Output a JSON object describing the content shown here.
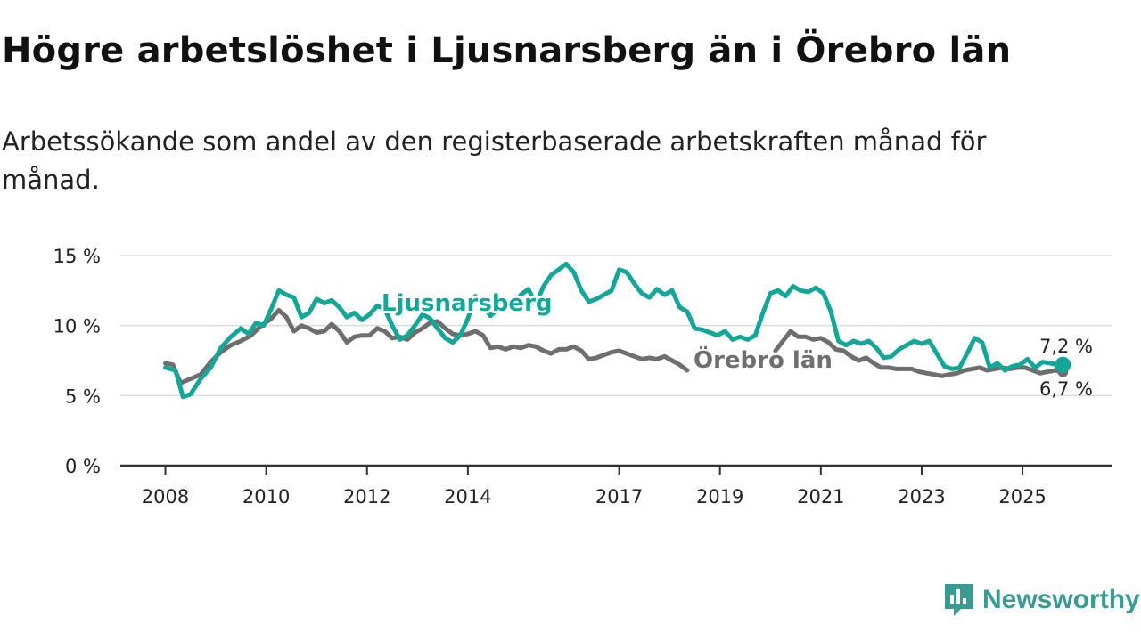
{
  "brand": {
    "name": "Newsworthy",
    "icon": "newsworthy-logo-icon",
    "color": "#3a9c91"
  },
  "chart_data": {
    "type": "line",
    "title": "Högre arbetslöshet i Ljusnarsberg än i Örebro län",
    "subtitle": "Arbetssökande som andel av den registerbaserade arbetskraften månad för månad.",
    "xlabel": "",
    "ylabel": "",
    "xlim": [
      2008,
      2025.9
    ],
    "ylim": [
      0,
      15
    ],
    "x_ticks": [
      2008,
      2010,
      2012,
      2014,
      2017,
      2019,
      2021,
      2023,
      2025
    ],
    "y_ticks": [
      {
        "value": 0,
        "label": "0 %"
      },
      {
        "value": 5,
        "label": "5 %"
      },
      {
        "value": 10,
        "label": "10 %"
      },
      {
        "value": 15,
        "label": "15 %"
      }
    ],
    "grid": true,
    "series": [
      {
        "name": "Ljusnarsberg",
        "color": "#14a697",
        "end_label": "7,2 %",
        "points": [
          [
            2008.0,
            7.0
          ],
          [
            2008.2,
            6.8
          ],
          [
            2008.35,
            4.9
          ],
          [
            2008.5,
            5.1
          ],
          [
            2008.7,
            6.2
          ],
          [
            2008.9,
            7.0
          ],
          [
            2009.1,
            8.4
          ],
          [
            2009.3,
            9.2
          ],
          [
            2009.5,
            9.8
          ],
          [
            2009.65,
            9.4
          ],
          [
            2009.8,
            10.2
          ],
          [
            2009.95,
            10.0
          ],
          [
            2010.1,
            11.2
          ],
          [
            2010.25,
            12.5
          ],
          [
            2010.4,
            12.2
          ],
          [
            2010.55,
            12.0
          ],
          [
            2010.7,
            10.6
          ],
          [
            2010.85,
            10.9
          ],
          [
            2011.0,
            11.9
          ],
          [
            2011.15,
            11.6
          ],
          [
            2011.3,
            11.8
          ],
          [
            2011.45,
            11.3
          ],
          [
            2011.6,
            10.6
          ],
          [
            2011.75,
            10.9
          ],
          [
            2011.9,
            10.4
          ],
          [
            2012.05,
            10.8
          ],
          [
            2012.2,
            11.4
          ],
          [
            2012.35,
            11.2
          ],
          [
            2012.5,
            10.0
          ],
          [
            2012.65,
            9.0
          ],
          [
            2012.8,
            9.3
          ],
          [
            2012.95,
            10.0
          ],
          [
            2013.1,
            10.8
          ],
          [
            2013.25,
            10.5
          ],
          [
            2013.4,
            9.8
          ],
          [
            2013.55,
            9.1
          ],
          [
            2013.7,
            8.8
          ],
          [
            2013.85,
            9.3
          ],
          [
            2014.0,
            10.5
          ],
          [
            2014.15,
            12.1
          ],
          [
            2014.3,
            11.4
          ],
          [
            2014.45,
            10.7
          ],
          [
            2014.6,
            11.2
          ],
          [
            2014.75,
            11.6
          ],
          [
            2014.9,
            11.5
          ],
          [
            2015.05,
            12.2
          ],
          [
            2015.2,
            12.6
          ],
          [
            2015.35,
            11.5
          ],
          [
            2015.5,
            12.8
          ],
          [
            2015.65,
            13.6
          ],
          [
            2015.8,
            14.0
          ],
          [
            2015.95,
            14.4
          ],
          [
            2016.1,
            13.8
          ],
          [
            2016.25,
            12.5
          ],
          [
            2016.4,
            11.7
          ],
          [
            2016.55,
            11.9
          ],
          [
            2016.7,
            12.2
          ],
          [
            2016.85,
            12.5
          ],
          [
            2017.0,
            14.0
          ],
          [
            2017.15,
            13.8
          ],
          [
            2017.3,
            13.0
          ],
          [
            2017.45,
            12.3
          ],
          [
            2017.6,
            12.0
          ],
          [
            2017.75,
            12.6
          ],
          [
            2017.9,
            12.2
          ],
          [
            2018.05,
            12.5
          ],
          [
            2018.2,
            11.3
          ],
          [
            2018.35,
            11.0
          ],
          [
            2018.5,
            9.8
          ],
          [
            2018.65,
            9.7
          ],
          [
            2018.8,
            9.5
          ],
          [
            2018.95,
            9.3
          ],
          [
            2019.1,
            9.6
          ],
          [
            2019.25,
            9.0
          ],
          [
            2019.4,
            9.2
          ],
          [
            2019.55,
            9.0
          ],
          [
            2019.7,
            9.3
          ],
          [
            2019.85,
            10.9
          ],
          [
            2020.0,
            12.3
          ],
          [
            2020.15,
            12.5
          ],
          [
            2020.3,
            12.1
          ],
          [
            2020.45,
            12.8
          ],
          [
            2020.6,
            12.5
          ],
          [
            2020.75,
            12.4
          ],
          [
            2020.9,
            12.7
          ],
          [
            2021.05,
            12.3
          ],
          [
            2021.2,
            11.0
          ],
          [
            2021.35,
            8.9
          ],
          [
            2021.5,
            8.6
          ],
          [
            2021.65,
            8.9
          ],
          [
            2021.8,
            8.7
          ],
          [
            2021.95,
            8.9
          ],
          [
            2022.1,
            8.4
          ],
          [
            2022.25,
            7.7
          ],
          [
            2022.4,
            7.8
          ],
          [
            2022.55,
            8.3
          ],
          [
            2022.7,
            8.6
          ],
          [
            2022.85,
            8.9
          ],
          [
            2023.0,
            8.7
          ],
          [
            2023.15,
            8.9
          ],
          [
            2023.3,
            8.0
          ],
          [
            2023.45,
            7.1
          ],
          [
            2023.6,
            6.9
          ],
          [
            2023.75,
            7.0
          ],
          [
            2023.9,
            8.0
          ],
          [
            2024.05,
            9.1
          ],
          [
            2024.2,
            8.8
          ],
          [
            2024.35,
            7.0
          ],
          [
            2024.5,
            7.3
          ],
          [
            2024.65,
            6.8
          ],
          [
            2024.8,
            7.1
          ],
          [
            2024.95,
            7.2
          ],
          [
            2025.1,
            7.6
          ],
          [
            2025.25,
            7.0
          ],
          [
            2025.4,
            7.4
          ],
          [
            2025.55,
            7.3
          ],
          [
            2025.7,
            7.2
          ],
          [
            2025.8,
            7.2
          ]
        ]
      },
      {
        "name": "Örebro län",
        "color": "#6e6e6e",
        "end_label": "6,7 %",
        "points": [
          [
            2008.0,
            7.3
          ],
          [
            2008.15,
            7.2
          ],
          [
            2008.3,
            5.9
          ],
          [
            2008.5,
            6.2
          ],
          [
            2008.7,
            6.5
          ],
          [
            2008.9,
            7.4
          ],
          [
            2009.1,
            8.1
          ],
          [
            2009.3,
            8.6
          ],
          [
            2009.5,
            8.9
          ],
          [
            2009.7,
            9.3
          ],
          [
            2009.9,
            10.0
          ],
          [
            2010.1,
            10.5
          ],
          [
            2010.25,
            11.1
          ],
          [
            2010.4,
            10.6
          ],
          [
            2010.55,
            9.6
          ],
          [
            2010.7,
            10.0
          ],
          [
            2010.85,
            9.8
          ],
          [
            2011.0,
            9.5
          ],
          [
            2011.15,
            9.6
          ],
          [
            2011.3,
            10.1
          ],
          [
            2011.45,
            9.6
          ],
          [
            2011.6,
            8.8
          ],
          [
            2011.75,
            9.2
          ],
          [
            2011.9,
            9.3
          ],
          [
            2012.05,
            9.3
          ],
          [
            2012.2,
            9.8
          ],
          [
            2012.35,
            9.6
          ],
          [
            2012.5,
            9.1
          ],
          [
            2012.65,
            9.2
          ],
          [
            2012.8,
            9.0
          ],
          [
            2012.95,
            9.5
          ],
          [
            2013.1,
            9.8
          ],
          [
            2013.25,
            10.2
          ],
          [
            2013.4,
            10.3
          ],
          [
            2013.55,
            9.8
          ],
          [
            2013.7,
            9.4
          ],
          [
            2013.85,
            9.3
          ],
          [
            2014.0,
            9.4
          ],
          [
            2014.15,
            9.6
          ],
          [
            2014.3,
            9.3
          ],
          [
            2014.45,
            8.4
          ],
          [
            2014.6,
            8.5
          ],
          [
            2014.75,
            8.3
          ],
          [
            2014.9,
            8.5
          ],
          [
            2015.05,
            8.4
          ],
          [
            2015.2,
            8.6
          ],
          [
            2015.35,
            8.5
          ],
          [
            2015.5,
            8.2
          ],
          [
            2015.65,
            8.0
          ],
          [
            2015.8,
            8.3
          ],
          [
            2015.95,
            8.3
          ],
          [
            2016.1,
            8.5
          ],
          [
            2016.25,
            8.2
          ],
          [
            2016.4,
            7.6
          ],
          [
            2016.55,
            7.7
          ],
          [
            2016.7,
            7.9
          ],
          [
            2016.85,
            8.1
          ],
          [
            2017.0,
            8.2
          ],
          [
            2017.15,
            8.0
          ],
          [
            2017.3,
            7.8
          ],
          [
            2017.45,
            7.6
          ],
          [
            2017.6,
            7.7
          ],
          [
            2017.75,
            7.6
          ],
          [
            2017.9,
            7.8
          ],
          [
            2018.05,
            7.5
          ],
          [
            2018.2,
            7.2
          ],
          [
            2018.35,
            6.8
          ],
          null,
          [
            2020.1,
            8.2
          ],
          [
            2020.25,
            8.9
          ],
          [
            2020.4,
            9.6
          ],
          [
            2020.55,
            9.2
          ],
          [
            2020.7,
            9.2
          ],
          [
            2020.85,
            9.0
          ],
          [
            2021.0,
            9.1
          ],
          [
            2021.15,
            8.8
          ],
          [
            2021.3,
            8.3
          ],
          [
            2021.45,
            8.2
          ],
          [
            2021.6,
            7.8
          ],
          [
            2021.75,
            7.5
          ],
          [
            2021.9,
            7.7
          ],
          [
            2022.05,
            7.3
          ],
          [
            2022.2,
            7.0
          ],
          [
            2022.35,
            7.0
          ],
          [
            2022.5,
            6.9
          ],
          [
            2022.65,
            6.9
          ],
          [
            2022.8,
            6.9
          ],
          [
            2022.95,
            6.7
          ],
          [
            2023.1,
            6.6
          ],
          [
            2023.25,
            6.5
          ],
          [
            2023.4,
            6.4
          ],
          [
            2023.55,
            6.5
          ],
          [
            2023.7,
            6.6
          ],
          [
            2023.85,
            6.8
          ],
          [
            2024.0,
            6.9
          ],
          [
            2024.15,
            7.0
          ],
          [
            2024.3,
            6.8
          ],
          [
            2024.45,
            6.9
          ],
          [
            2024.6,
            7.0
          ],
          [
            2024.75,
            6.9
          ],
          [
            2024.9,
            7.0
          ],
          [
            2025.05,
            7.0
          ],
          [
            2025.2,
            6.8
          ],
          [
            2025.35,
            6.6
          ],
          [
            2025.5,
            6.7
          ],
          [
            2025.65,
            6.8
          ],
          [
            2025.8,
            6.7
          ]
        ]
      }
    ]
  }
}
